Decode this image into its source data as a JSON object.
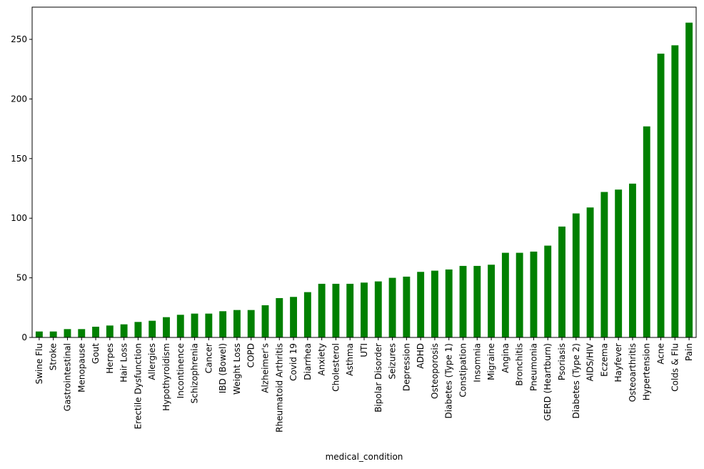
{
  "chart_data": {
    "type": "bar",
    "title": "",
    "xlabel": "medical_condition",
    "ylabel": "",
    "ylim": [
      0,
      277
    ],
    "yticks": [
      0,
      50,
      100,
      150,
      200,
      250
    ],
    "grid": false,
    "legend": "none",
    "bar_color": "#008000",
    "categories": [
      "Swine Flu",
      "Stroke",
      "Gastrointestinal",
      "Menopause",
      "Gout",
      "Herpes",
      "Hair Loss",
      "Erectile Dysfunction",
      "Allergies",
      "Hypothyroidism",
      "Incontinence",
      "Schizophrenia",
      "Cancer",
      "IBD (Bowel)",
      "Weight Loss",
      "COPD",
      "Alzheimer's",
      "Rheumatoid Arthritis",
      "Covid 19",
      "Diarrhea",
      "Anxiety",
      "Cholesterol",
      "Asthma",
      "UTI",
      "Bipolar Disorder",
      "Seizures",
      "Depression",
      "ADHD",
      "Osteoporosis",
      "Diabetes (Type 1)",
      "Constipation",
      "Insomnia",
      "Migraine",
      "Angina",
      "Bronchitis",
      "Pneumonia",
      "GERD (Heartburn)",
      "Psoriasis",
      "Diabetes (Type 2)",
      "AIDS/HIV",
      "Eczema",
      "Hayfever",
      "Osteoarthritis",
      "Hypertension",
      "Acne",
      "Colds & Flu",
      "Pain"
    ],
    "values": [
      5,
      5,
      7,
      7,
      9,
      10,
      11,
      13,
      14,
      17,
      19,
      20,
      20,
      22,
      23,
      23,
      27,
      33,
      34,
      38,
      45,
      45,
      45,
      46,
      47,
      50,
      51,
      55,
      56,
      57,
      60,
      60,
      61,
      71,
      71,
      72,
      77,
      93,
      104,
      109,
      122,
      124,
      129,
      177,
      238,
      245,
      264
    ]
  }
}
